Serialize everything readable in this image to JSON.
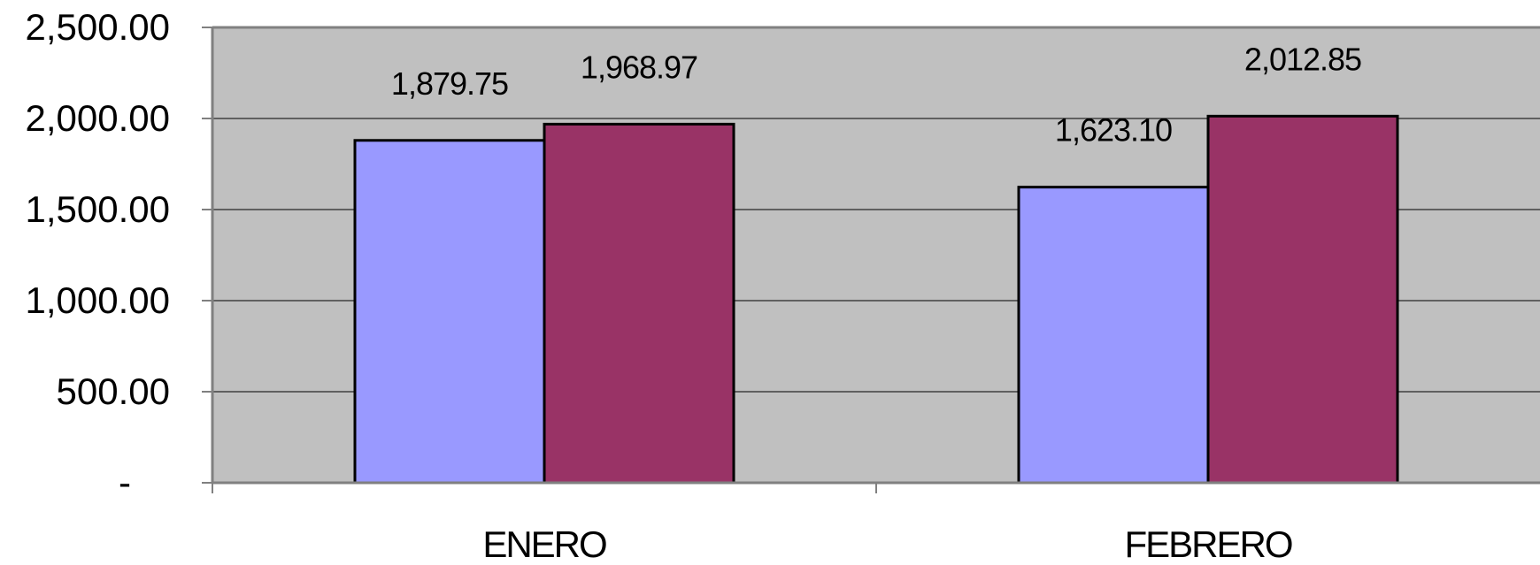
{
  "chart_data": {
    "type": "bar",
    "title": "",
    "xlabel": "",
    "ylabel": "",
    "categories": [
      "ENERO",
      "FEBRERO"
    ],
    "series": [
      {
        "values": [
          1879.75,
          1623.1
        ],
        "color": "#9999ff"
      },
      {
        "values": [
          1968.97,
          2012.85
        ],
        "color": "#993366"
      }
    ],
    "data_labels": [
      [
        "1,879.75",
        "1,623.10"
      ],
      [
        "1,968.97",
        "2,012.85"
      ]
    ],
    "ylim": [
      0,
      2500
    ],
    "yticks": [
      0,
      500,
      1000,
      1500,
      2000,
      2500
    ],
    "ytick_labels": [
      "-",
      "500.00",
      "1,000.00",
      "1,500.00",
      "2,000.00",
      "2,500.00"
    ],
    "grid": true,
    "legend": "none",
    "plot_background": "#c0c0c0",
    "gridline_color": "#000000"
  }
}
